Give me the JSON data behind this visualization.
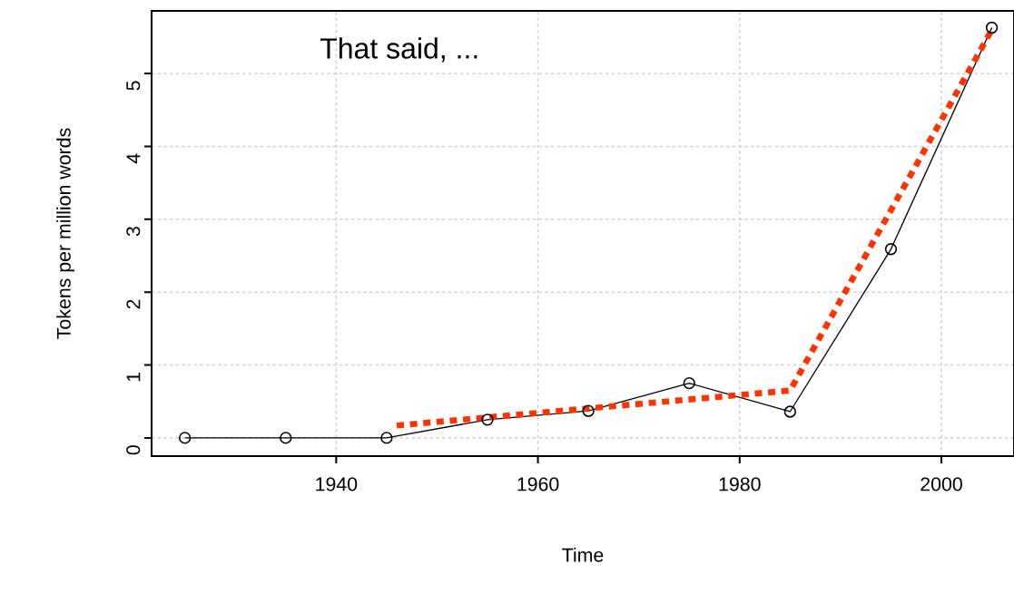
{
  "chart_data": {
    "type": "line",
    "xlabel": "Time",
    "ylabel": "Tokens per million words",
    "annotations": [
      "That said, ..."
    ],
    "x": [
      1925,
      1935,
      1945,
      1955,
      1965,
      1975,
      1985,
      1995,
      2005
    ],
    "series": [
      {
        "color": "#000000",
        "marker": "circle",
        "line_style": "solid",
        "values": [
          0,
          0,
          0,
          0.25,
          0.37,
          0.75,
          0.36,
          2.59,
          5.63
        ]
      },
      {
        "color": "#ff3300",
        "marker": "none",
        "line_style": "dotted",
        "x": [
          1946,
          1985,
          2005
        ],
        "values": [
          0.17,
          0.65,
          5.6
        ]
      }
    ],
    "xlim": [
      1921.7,
      2007.2
    ],
    "ylim": [
      -0.25,
      5.86
    ],
    "xticks": [
      1940,
      1960,
      1980,
      2000
    ],
    "yticks": [
      0,
      1,
      2,
      3,
      4,
      5
    ],
    "grid": true
  }
}
